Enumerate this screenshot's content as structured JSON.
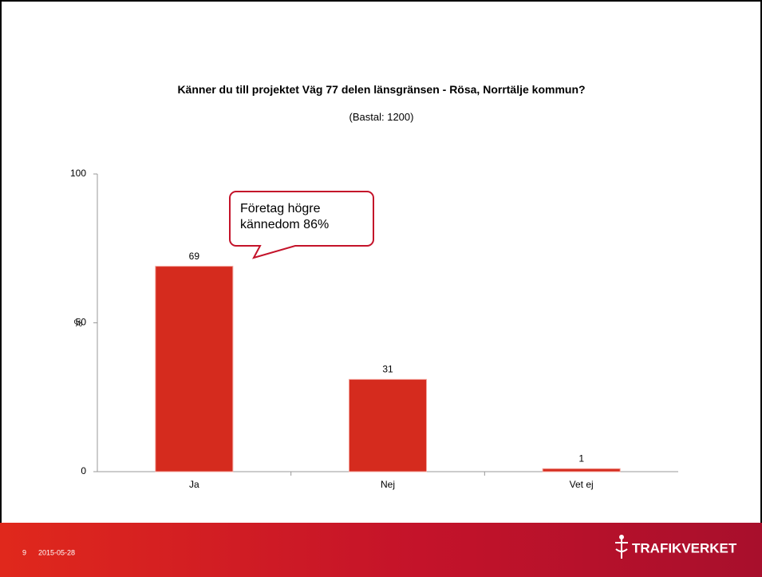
{
  "chart_data": {
    "type": "bar",
    "title": "Känner du till projektet Väg 77 delen länsgränsen - Rösa, Norrtälje kommun?",
    "subtitle": "(Bastal: 1200)",
    "y_label": "%",
    "annotation": "Företag högre kännedom 86%",
    "categories": [
      "Ja",
      "Nej",
      "Vet ej"
    ],
    "values": [
      69,
      31,
      1
    ],
    "color": "#d52b1e",
    "ylim": [
      0,
      100
    ],
    "yticks": [
      0,
      50,
      100
    ]
  },
  "footer": {
    "page": "9",
    "date": "2015-05-28",
    "logo": "TRAFIKVERKET"
  }
}
